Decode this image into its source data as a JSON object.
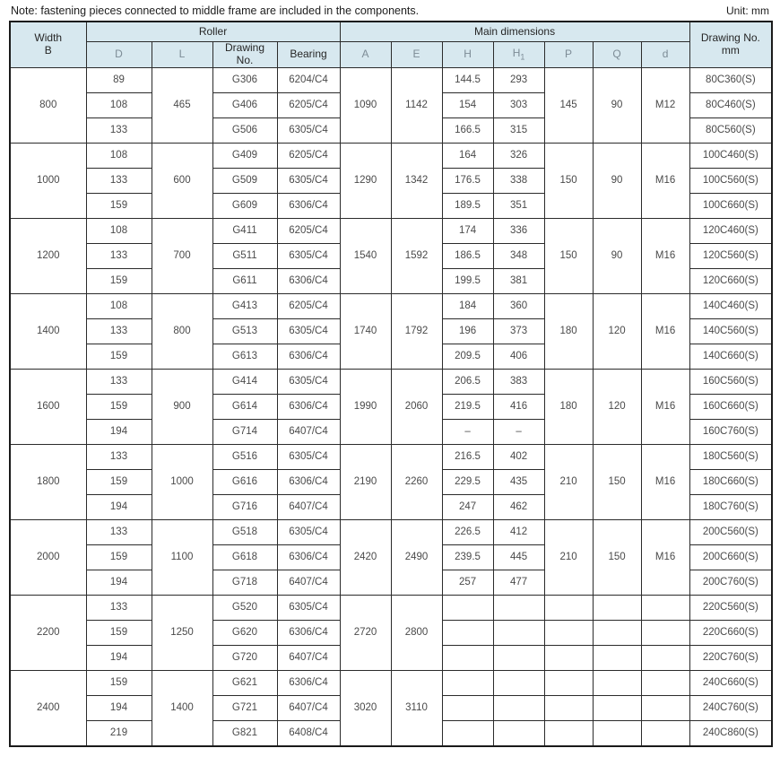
{
  "note": "Note: fastening pieces connected to middle frame are included in the components.",
  "unit_label": "Unit: mm",
  "table": {
    "header": {
      "width_line1": "Width",
      "width_line2": "B",
      "roller": "Roller",
      "main_dimensions": "Main dimensions",
      "drawing_no_line1": "Drawing No.",
      "drawing_no_line2": "mm",
      "cols": {
        "d": "D",
        "l": "L",
        "drawing_line1": "Drawing",
        "drawing_line2": "No.",
        "bearing": "Bearing",
        "a": "A",
        "e": "E",
        "h": "H",
        "h1_base": "H",
        "h1_sub": "1",
        "p": "P",
        "q": "Q",
        "d_small": "d"
      }
    },
    "groups": [
      {
        "b": "800",
        "l": "465",
        "a": "1090",
        "e": "1142",
        "p": "145",
        "q": "90",
        "d_thread": "M12",
        "rows": [
          {
            "d": "89",
            "drawing": "G306",
            "bearing": "6204/C4",
            "h": "144.5",
            "h1": "293",
            "code": "80C360(S)"
          },
          {
            "d": "108",
            "drawing": "G406",
            "bearing": "6205/C4",
            "h": "154",
            "h1": "303",
            "code": "80C460(S)"
          },
          {
            "d": "133",
            "drawing": "G506",
            "bearing": "6305/C4",
            "h": "166.5",
            "h1": "315",
            "code": "80C560(S)"
          }
        ]
      },
      {
        "b": "1000",
        "l": "600",
        "a": "1290",
        "e": "1342",
        "p": "150",
        "q": "90",
        "d_thread": "M16",
        "rows": [
          {
            "d": "108",
            "drawing": "G409",
            "bearing": "6205/C4",
            "h": "164",
            "h1": "326",
            "code": "100C460(S)"
          },
          {
            "d": "133",
            "drawing": "G509",
            "bearing": "6305/C4",
            "h": "176.5",
            "h1": "338",
            "code": "100C560(S)"
          },
          {
            "d": "159",
            "drawing": "G609",
            "bearing": "6306/C4",
            "h": "189.5",
            "h1": "351",
            "code": "100C660(S)"
          }
        ]
      },
      {
        "b": "1200",
        "l": "700",
        "a": "1540",
        "e": "1592",
        "p": "150",
        "q": "90",
        "d_thread": "M16",
        "rows": [
          {
            "d": "108",
            "drawing": "G411",
            "bearing": "6205/C4",
            "h": "174",
            "h1": "336",
            "code": "120C460(S)"
          },
          {
            "d": "133",
            "drawing": "G511",
            "bearing": "6305/C4",
            "h": "186.5",
            "h1": "348",
            "code": "120C560(S)"
          },
          {
            "d": "159",
            "drawing": "G611",
            "bearing": "6306/C4",
            "h": "199.5",
            "h1": "381",
            "code": "120C660(S)"
          }
        ]
      },
      {
        "b": "1400",
        "l": "800",
        "a": "1740",
        "e": "1792",
        "p": "180",
        "q": "120",
        "d_thread": "M16",
        "rows": [
          {
            "d": "108",
            "drawing": "G413",
            "bearing": "6205/C4",
            "h": "184",
            "h1": "360",
            "code": "140C460(S)"
          },
          {
            "d": "133",
            "drawing": "G513",
            "bearing": "6305/C4",
            "h": "196",
            "h1": "373",
            "code": "140C560(S)"
          },
          {
            "d": "159",
            "drawing": "G613",
            "bearing": "6306/C4",
            "h": "209.5",
            "h1": "406",
            "code": "140C660(S)"
          }
        ]
      },
      {
        "b": "1600",
        "l": "900",
        "a": "1990",
        "e": "2060",
        "p": "180",
        "q": "120",
        "d_thread": "M16",
        "rows": [
          {
            "d": "133",
            "drawing": "G414",
            "bearing": "6305/C4",
            "h": "206.5",
            "h1": "383",
            "code": "160C560(S)"
          },
          {
            "d": "159",
            "drawing": "G614",
            "bearing": "6306/C4",
            "h": "219.5",
            "h1": "416",
            "code": "160C660(S)"
          },
          {
            "d": "194",
            "drawing": "G714",
            "bearing": "6407/C4",
            "h": "–",
            "h1": "–",
            "code": "160C760(S)"
          }
        ]
      },
      {
        "b": "1800",
        "l": "1000",
        "a": "2190",
        "e": "2260",
        "p": "210",
        "q": "150",
        "d_thread": "M16",
        "rows": [
          {
            "d": "133",
            "drawing": "G516",
            "bearing": "6305/C4",
            "h": "216.5",
            "h1": "402",
            "code": "180C560(S)"
          },
          {
            "d": "159",
            "drawing": "G616",
            "bearing": "6306/C4",
            "h": "229.5",
            "h1": "435",
            "code": "180C660(S)"
          },
          {
            "d": "194",
            "drawing": "G716",
            "bearing": "6407/C4",
            "h": "247",
            "h1": "462",
            "code": "180C760(S)"
          }
        ]
      },
      {
        "b": "2000",
        "l": "1100",
        "a": "2420",
        "e": "2490",
        "p": "210",
        "q": "150",
        "d_thread": "M16",
        "rows": [
          {
            "d": "133",
            "drawing": "G518",
            "bearing": "6305/C4",
            "h": "226.5",
            "h1": "412",
            "code": "200C560(S)"
          },
          {
            "d": "159",
            "drawing": "G618",
            "bearing": "6306/C4",
            "h": "239.5",
            "h1": "445",
            "code": "200C660(S)"
          },
          {
            "d": "194",
            "drawing": "G718",
            "bearing": "6407/C4",
            "h": "257",
            "h1": "477",
            "code": "200C760(S)"
          }
        ]
      },
      {
        "b": "2200",
        "l": "1250",
        "a": "2720",
        "e": "2800",
        "p": "",
        "q": "",
        "d_thread": "",
        "rows": [
          {
            "d": "133",
            "drawing": "G520",
            "bearing": "6305/C4",
            "h": "",
            "h1": "",
            "code": "220C560(S)"
          },
          {
            "d": "159",
            "drawing": "G620",
            "bearing": "6306/C4",
            "h": "",
            "h1": "",
            "code": "220C660(S)"
          },
          {
            "d": "194",
            "drawing": "G720",
            "bearing": "6407/C4",
            "h": "",
            "h1": "",
            "code": "220C760(S)"
          }
        ]
      },
      {
        "b": "2400",
        "l": "1400",
        "a": "3020",
        "e": "3110",
        "p": "",
        "q": "",
        "d_thread": "",
        "rows": [
          {
            "d": "159",
            "drawing": "G621",
            "bearing": "6306/C4",
            "h": "",
            "h1": "",
            "code": "240C660(S)"
          },
          {
            "d": "194",
            "drawing": "G721",
            "bearing": "6407/C4",
            "h": "",
            "h1": "",
            "code": "240C760(S)"
          },
          {
            "d": "219",
            "drawing": "G821",
            "bearing": "6408/C4",
            "h": "",
            "h1": "",
            "code": "240C860(S)"
          }
        ]
      }
    ]
  }
}
